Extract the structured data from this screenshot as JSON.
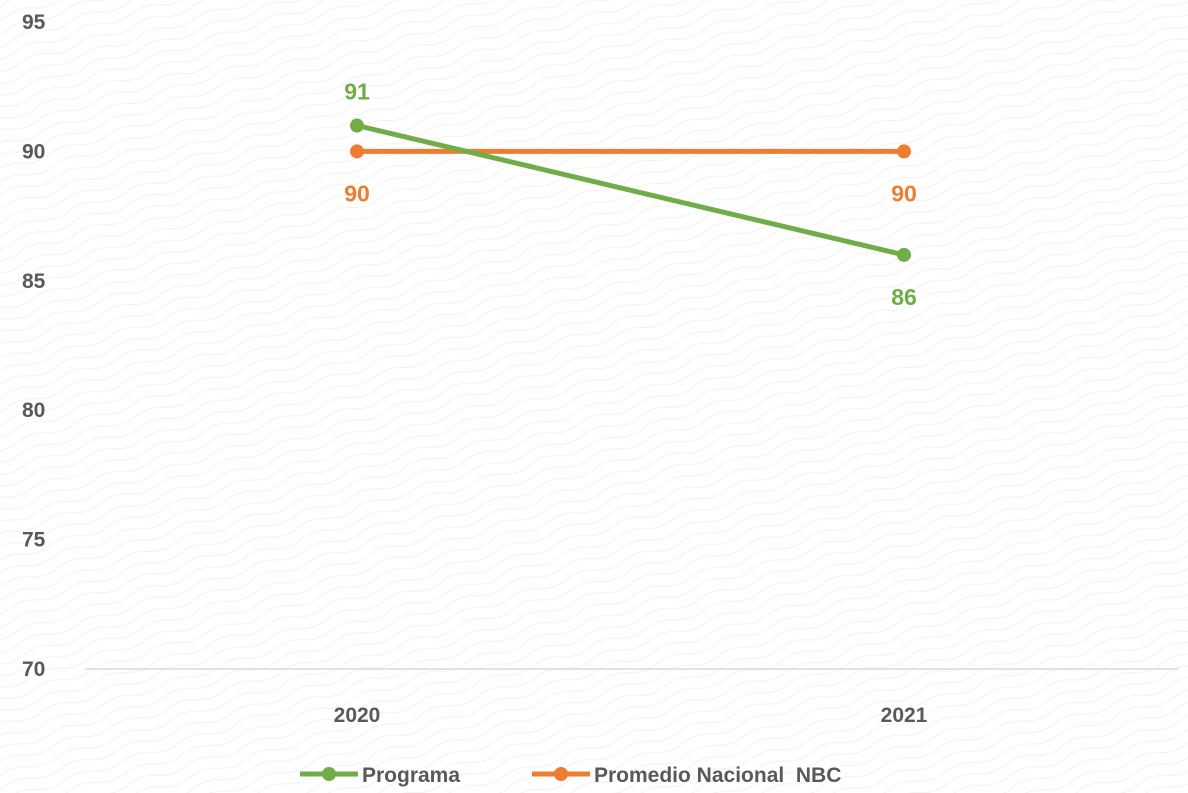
{
  "chart_data": {
    "type": "line",
    "title": "",
    "xlabel": "",
    "ylabel": "",
    "categories": [
      "2020",
      "2021"
    ],
    "ylim": [
      70,
      95
    ],
    "yticks": [
      "70",
      "75",
      "80",
      "85",
      "90",
      "95"
    ],
    "grid": false,
    "legend_position": "bottom",
    "series": [
      {
        "name": "Programa",
        "values": [
          91,
          86
        ],
        "labels": [
          "91",
          "86"
        ],
        "color": "#70AD47",
        "label_position": [
          "above",
          "below"
        ]
      },
      {
        "name": "Promedio Nacional  NBC",
        "values": [
          90,
          90
        ],
        "labels": [
          "90",
          "90"
        ],
        "color": "#ED7D31",
        "label_position": [
          "below",
          "below"
        ]
      }
    ]
  }
}
